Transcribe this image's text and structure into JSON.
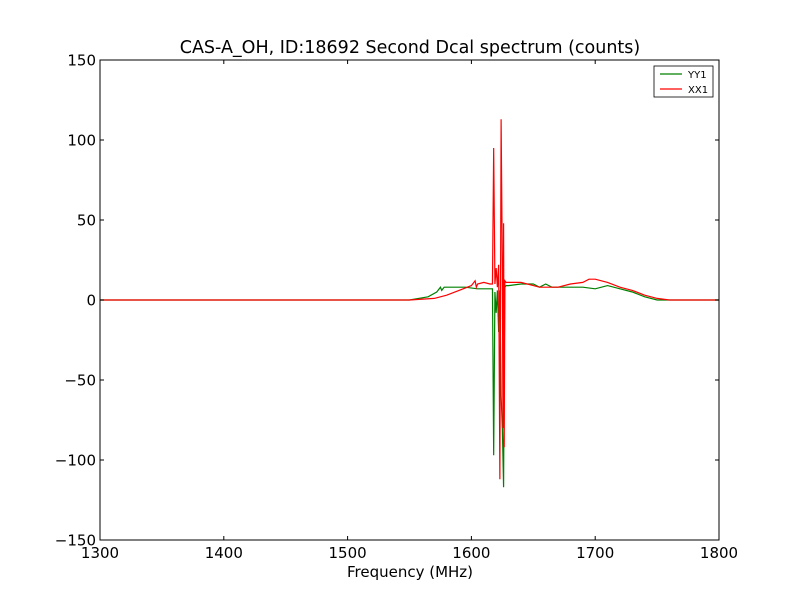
{
  "chart_data": {
    "type": "line",
    "title": "CAS-A_OH, ID:18692 Second Dcal spectrum (counts)",
    "xlabel": "Frequency (MHz)",
    "ylabel": "",
    "xlim": [
      1300,
      1800
    ],
    "ylim": [
      -150,
      150
    ],
    "xticks": [
      "1300",
      "1400",
      "1500",
      "1600",
      "1700",
      "1800"
    ],
    "yticks": [
      "150",
      "100",
      "50",
      "0",
      "−50",
      "−100",
      "−150"
    ],
    "grid": false,
    "legend_position": "top-right",
    "series": [
      {
        "name": "YY1",
        "color": "#008000",
        "x": [
          1300,
          1400,
          1500,
          1550,
          1565,
          1572,
          1575,
          1576,
          1578,
          1585,
          1595,
          1605,
          1612,
          1617,
          1618,
          1619,
          1620,
          1621,
          1622,
          1623,
          1624,
          1625,
          1626,
          1626.5,
          1627,
          1628,
          1630,
          1640,
          1650,
          1655,
          1660,
          1665,
          1670,
          1680,
          1690,
          1700,
          1710,
          1720,
          1730,
          1740,
          1750,
          1760,
          1800
        ],
        "y": [
          0,
          0,
          0,
          0,
          2,
          5,
          8,
          6,
          8,
          8,
          8,
          7,
          7,
          7,
          -97,
          5,
          -8,
          6,
          -20,
          6,
          -60,
          -80,
          -117,
          -40,
          8,
          9,
          9,
          10,
          10,
          8,
          10,
          8,
          8,
          8,
          8,
          7,
          9,
          7,
          5,
          2,
          0,
          0,
          0
        ]
      },
      {
        "name": "XX1",
        "color": "#ff0000",
        "x": [
          1300,
          1400,
          1500,
          1550,
          1570,
          1580,
          1590,
          1600,
          1603,
          1604,
          1605,
          1610,
          1615,
          1617,
          1618,
          1619,
          1620,
          1621,
          1622,
          1623,
          1624,
          1625,
          1625.5,
          1626,
          1626.5,
          1627,
          1628,
          1630,
          1640,
          1650,
          1655,
          1660,
          1670,
          1680,
          1690,
          1695,
          1700,
          1705,
          1710,
          1720,
          1730,
          1740,
          1750,
          1760,
          1800
        ],
        "y": [
          0,
          0,
          0,
          0,
          1,
          3,
          6,
          9,
          12,
          8,
          10,
          11,
          10,
          10,
          95,
          10,
          20,
          8,
          22,
          -112,
          113,
          20,
          -80,
          48,
          -92,
          12,
          11,
          11,
          11,
          9,
          8,
          8,
          8,
          10,
          11,
          13,
          13,
          12,
          11,
          8,
          6,
          3,
          1,
          0,
          0
        ]
      }
    ]
  }
}
